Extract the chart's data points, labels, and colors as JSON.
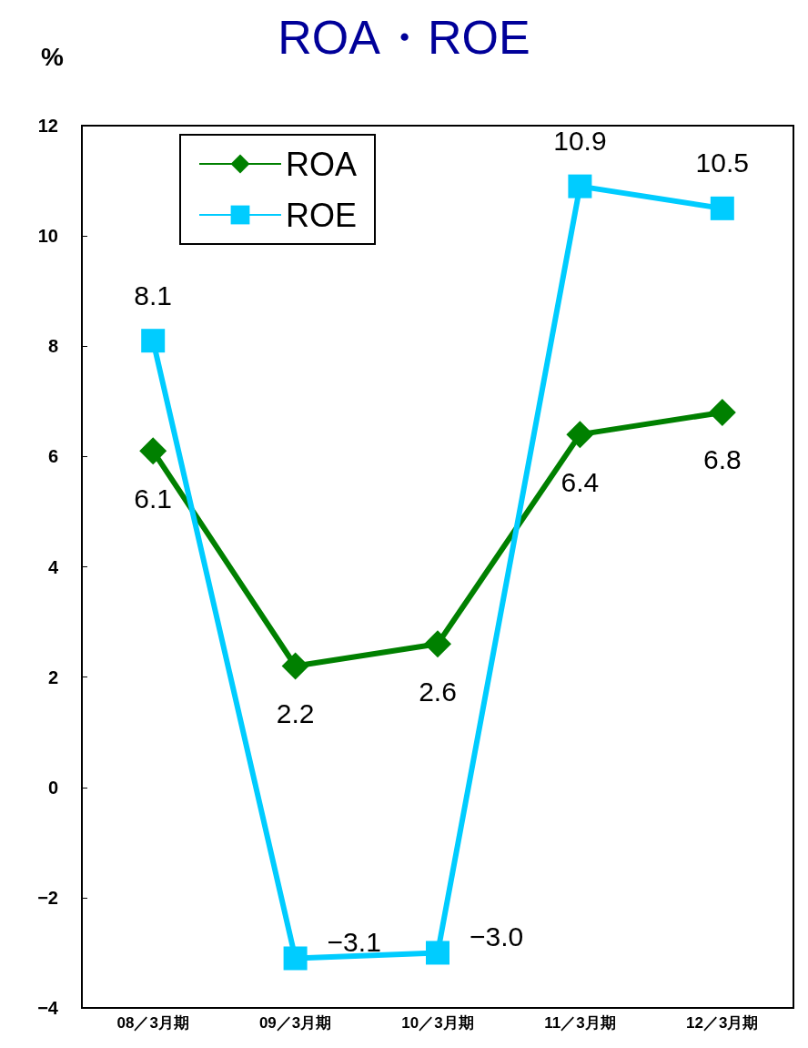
{
  "chart_data": {
    "type": "line",
    "title": "ROA・ROE",
    "ylabel": "%",
    "categories": [
      "08／3月期",
      "09／3月期",
      "10／3月期",
      "11／3月期",
      "12／3月期"
    ],
    "series": [
      {
        "name": "ROA",
        "color": "#008000",
        "marker": "diamond",
        "values": [
          6.1,
          2.2,
          2.6,
          6.4,
          6.8
        ],
        "value_labels": [
          "6.1",
          "2.2",
          "2.6",
          "6.4",
          "6.8"
        ]
      },
      {
        "name": "ROE",
        "color": "#00ccff",
        "marker": "square",
        "values": [
          8.1,
          -3.1,
          -3.0,
          10.9,
          10.5
        ],
        "value_labels": [
          "8.1",
          "−3.1",
          "−3.0",
          "10.9",
          "10.5"
        ]
      }
    ],
    "ylim": [
      -4,
      12
    ],
    "yticks": [
      -4,
      -2,
      0,
      2,
      4,
      6,
      8,
      10,
      12
    ],
    "grid": false,
    "legend": "top left"
  }
}
